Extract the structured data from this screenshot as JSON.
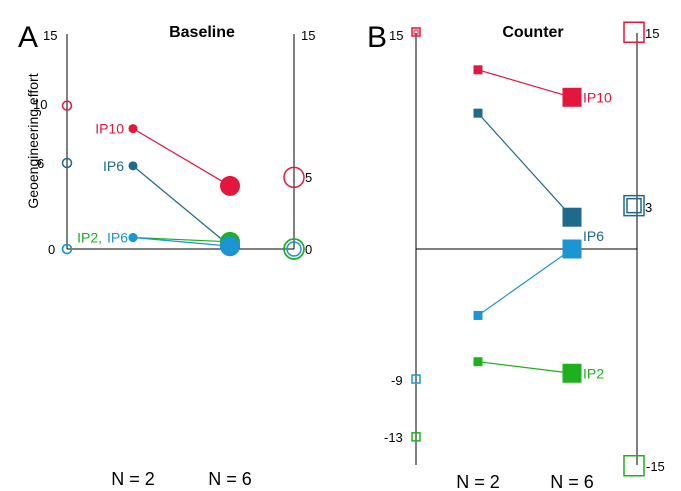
{
  "chart_data": [
    {
      "panel_letter": "A",
      "title": "Baseline",
      "type": "scatter",
      "ylabel": "Geoengineering effort",
      "x": [
        "",
        "N = 2",
        "N = 6",
        ""
      ],
      "ylim": [
        0,
        15
      ],
      "left_axis_ticks": [
        "0",
        "6",
        "10",
        "15"
      ],
      "right_axis_ticks": [
        "0",
        "5",
        "15"
      ],
      "colors": {
        "IP10": "#e3173e",
        "IP6": "#1f6a8a",
        "IP2": "#1fb01f",
        "IP6_teal": "#1c96d2"
      },
      "series": [
        {
          "name": "IP10",
          "color": "#e3173e",
          "values": [
            10,
            8.4,
            4.4,
            5
          ]
        },
        {
          "name": "IP6",
          "color": "#1f6a8a",
          "values": [
            6,
            5.8,
            0.2,
            0
          ]
        },
        {
          "name": "IP2",
          "color": "#1fb01f",
          "values": [
            0,
            0.8,
            0.5,
            0
          ]
        },
        {
          "name": "IP6",
          "color": "#1c96d2",
          "values": [
            0,
            0.8,
            0.2,
            0
          ]
        }
      ],
      "point_labels": [
        {
          "text": "IP10",
          "series": 0
        },
        {
          "text": "IP6",
          "series": 1
        },
        {
          "text": "IP2,",
          "series": 2
        },
        {
          "text": "IP6",
          "series": 3
        }
      ]
    },
    {
      "panel_letter": "B",
      "title": "Counter",
      "type": "scatter",
      "ylabel": "",
      "x": [
        "",
        "N = 2",
        "N = 6",
        ""
      ],
      "ylim": [
        -15,
        15
      ],
      "left_axis_ticks": [
        "-13",
        "-9",
        "15"
      ],
      "right_axis_ticks": [
        "-15",
        "3",
        "15"
      ],
      "series": [
        {
          "name": "IP10",
          "color": "#e3173e",
          "values": [
            15,
            12.4,
            10.5,
            15
          ]
        },
        {
          "name": "IP6",
          "color": "#1f6a8a",
          "values": [
            null,
            9.4,
            2.2,
            3
          ]
        },
        {
          "name": "IP6",
          "color": "#1c96d2",
          "values": [
            -9,
            -4.6,
            0,
            null
          ]
        },
        {
          "name": "IP2",
          "color": "#1fb01f",
          "values": [
            -13,
            -7.8,
            -8.6,
            -15
          ]
        }
      ],
      "point_labels": [
        {
          "text": "IP10",
          "series": 0
        },
        {
          "text": "IP6",
          "series": 2
        },
        {
          "text": "IP2",
          "series": 3
        }
      ]
    }
  ],
  "footer": {
    "n2": "N = 2",
    "n6": "N = 6"
  }
}
